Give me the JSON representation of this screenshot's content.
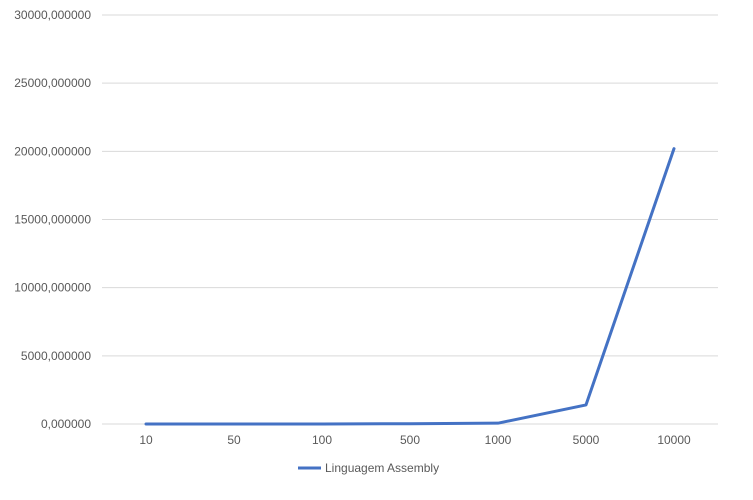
{
  "chart_data": {
    "type": "line",
    "title": "",
    "xlabel": "",
    "ylabel": "",
    "categories": [
      "10",
      "50",
      "100",
      "500",
      "1000",
      "5000",
      "10000"
    ],
    "y_ticks": [
      "0,000000",
      "5000,000000",
      "10000,000000",
      "15000,000000",
      "20000,000000",
      "25000,000000",
      "30000,000000"
    ],
    "ylim": [
      0,
      30000
    ],
    "grid": true,
    "legend_position": "bottom",
    "series": [
      {
        "name": "Linguagem Assembly",
        "color": "#4472C4",
        "values": [
          0.2,
          1,
          2,
          20,
          60,
          1400,
          20200
        ]
      }
    ]
  }
}
